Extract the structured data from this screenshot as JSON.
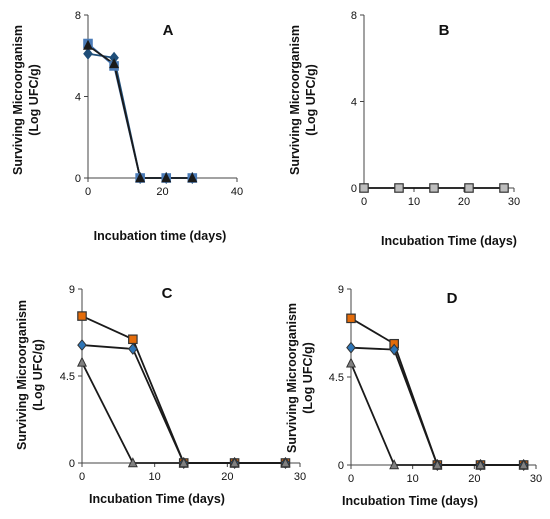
{
  "chart_data": [
    {
      "panel_label": "A",
      "type": "line",
      "xlabel": "Incubation time (days)",
      "ylabel_lines": [
        "Surviving Microorganism",
        "(Log UFC/g)"
      ],
      "xlim": [
        0,
        40
      ],
      "ylim": [
        0,
        8
      ],
      "x_ticks": [
        0,
        20,
        40
      ],
      "y_ticks": [
        0,
        4,
        8
      ],
      "series": [
        {
          "values": [
            [
              0,
              6.1
            ],
            [
              7,
              5.9
            ],
            [
              14,
              0
            ],
            [
              21,
              0
            ],
            [
              28,
              0
            ]
          ],
          "color": "#1f4e79",
          "marker": "diamond"
        },
        {
          "values": [
            [
              0,
              6.6
            ],
            [
              7,
              5.5
            ],
            [
              14,
              0
            ],
            [
              21,
              0
            ],
            [
              28,
              0
            ]
          ],
          "color": "#4a7bb7",
          "marker": "square"
        },
        {
          "values": [
            [
              0,
              6.5
            ],
            [
              7,
              5.6
            ],
            [
              14,
              0
            ],
            [
              21,
              0
            ],
            [
              28,
              0
            ]
          ],
          "color": "#1a1a1a",
          "marker": "triangle"
        }
      ]
    },
    {
      "panel_label": "B",
      "type": "line",
      "xlabel": "Incubation Time (days)",
      "ylabel_lines": [
        "Surviving Microorganism",
        "(Log UFC/g)"
      ],
      "xlim": [
        0,
        30
      ],
      "ylim": [
        0,
        8
      ],
      "x_ticks": [
        0,
        10,
        20,
        30
      ],
      "y_ticks": [
        0,
        4,
        8
      ],
      "series": [
        {
          "values": [
            [
              0,
              0
            ],
            [
              7,
              0
            ],
            [
              14,
              0
            ],
            [
              21,
              0
            ],
            [
              28,
              0
            ]
          ],
          "color": "#111111",
          "marker": "square",
          "marker_color": "#bdbdbd"
        }
      ]
    },
    {
      "panel_label": "C",
      "type": "line",
      "xlabel": "Incubation Time (days)",
      "ylabel_lines": [
        "Surviving Microorganism",
        "(Log UFC/g)"
      ],
      "xlim": [
        0,
        30
      ],
      "ylim": [
        0,
        9
      ],
      "x_ticks": [
        0,
        10,
        20,
        30
      ],
      "y_ticks": [
        0,
        4.5,
        9
      ],
      "series": [
        {
          "values": [
            [
              0,
              7.6
            ],
            [
              7,
              6.4
            ],
            [
              14,
              0
            ],
            [
              21,
              0
            ],
            [
              28,
              0
            ]
          ],
          "color": "#1a1a1a",
          "marker": "square",
          "marker_color": "#e46c0a"
        },
        {
          "values": [
            [
              0,
              6.1
            ],
            [
              7,
              5.9
            ],
            [
              14,
              0
            ],
            [
              21,
              0
            ],
            [
              28,
              0
            ]
          ],
          "color": "#1a1a1a",
          "marker": "diamond",
          "marker_color": "#2e75b6"
        },
        {
          "values": [
            [
              0,
              5.2
            ],
            [
              7,
              0
            ],
            [
              14,
              0
            ],
            [
              21,
              0
            ],
            [
              28,
              0
            ]
          ],
          "color": "#1a1a1a",
          "marker": "triangle",
          "marker_color": "#808080"
        }
      ]
    },
    {
      "panel_label": "D",
      "type": "line",
      "xlabel": "Incubation Time (days)",
      "ylabel_lines": [
        "Surviving Microorganism",
        "(Log UFC/g)"
      ],
      "xlim": [
        0,
        30
      ],
      "ylim": [
        0,
        9
      ],
      "x_ticks": [
        0,
        10,
        20,
        30
      ],
      "y_ticks": [
        0,
        4.5,
        9
      ],
      "series": [
        {
          "values": [
            [
              0,
              7.5
            ],
            [
              7,
              6.2
            ],
            [
              14,
              0
            ],
            [
              21,
              0
            ],
            [
              28,
              0
            ]
          ],
          "color": "#1a1a1a",
          "marker": "square",
          "marker_color": "#e46c0a"
        },
        {
          "values": [
            [
              0,
              6.0
            ],
            [
              7,
              5.9
            ],
            [
              14,
              0
            ],
            [
              21,
              0
            ],
            [
              28,
              0
            ]
          ],
          "color": "#1a1a1a",
          "marker": "diamond",
          "marker_color": "#2e75b6"
        },
        {
          "values": [
            [
              0,
              5.2
            ],
            [
              7,
              0
            ],
            [
              14,
              0
            ],
            [
              21,
              0
            ],
            [
              28,
              0
            ]
          ],
          "color": "#1a1a1a",
          "marker": "triangle",
          "marker_color": "#808080"
        }
      ]
    }
  ]
}
